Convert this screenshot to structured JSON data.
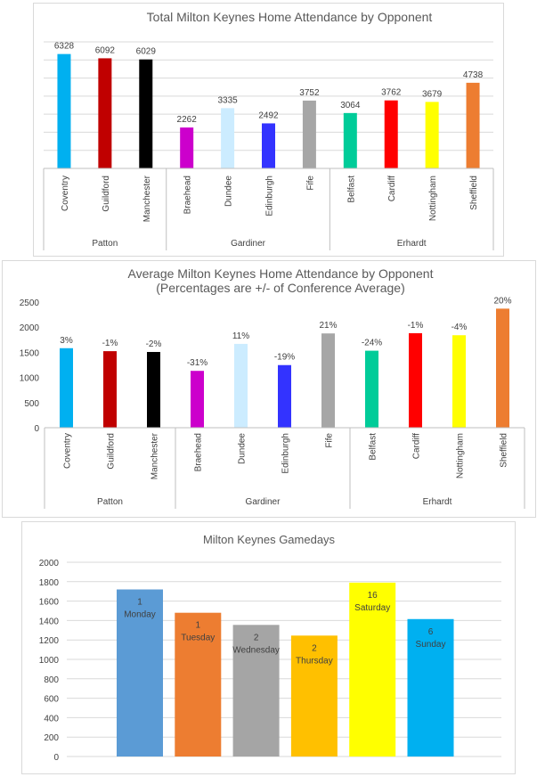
{
  "chart_data": [
    {
      "type": "bar",
      "title": "Total Milton Keynes Home Attendance by Opponent",
      "groups": [
        {
          "name": "Patton",
          "categories": [
            "Coventry",
            "Guildford",
            "Manchester"
          ]
        },
        {
          "name": "Gardiner",
          "categories": [
            "Braehead",
            "Dundee",
            "Edinburgh",
            "Fife"
          ]
        },
        {
          "name": "Erhardt",
          "categories": [
            "Belfast",
            "Cardiff",
            "Nottingham",
            "Sheffield"
          ]
        }
      ],
      "categories": [
        "Coventry",
        "Guildford",
        "Manchester",
        "Braehead",
        "Dundee",
        "Edinburgh",
        "Fife",
        "Belfast",
        "Cardiff",
        "Nottingham",
        "Sheffield"
      ],
      "values": [
        6328,
        6092,
        6029,
        2262,
        3335,
        2492,
        3752,
        3064,
        3762,
        3679,
        4738
      ],
      "data_labels": [
        "6328",
        "6092",
        "6029",
        "2262",
        "3335",
        "2492",
        "3752",
        "3064",
        "3762",
        "3679",
        "4738"
      ],
      "colors": [
        "#00B0F0",
        "#C00000",
        "#000000",
        "#CC00CC",
        "#CCECFF",
        "#3333FF",
        "#A6A6A6",
        "#00CC99",
        "#FF0000",
        "#FFFF00",
        "#ED7D31"
      ],
      "ylim": [
        0,
        7000
      ],
      "grid": true,
      "legend": "none"
    },
    {
      "type": "bar",
      "title": "Average Milton Keynes Home Attendance by Opponent",
      "subtitle": "(Percentages are +/- of Conference Average)",
      "groups": [
        {
          "name": "Patton",
          "categories": [
            "Coventry",
            "Guildford",
            "Manchester"
          ]
        },
        {
          "name": "Gardiner",
          "categories": [
            "Braehead",
            "Dundee",
            "Edinburgh",
            "Fife"
          ]
        },
        {
          "name": "Erhardt",
          "categories": [
            "Belfast",
            "Cardiff",
            "Nottingham",
            "Sheffield"
          ]
        }
      ],
      "categories": [
        "Coventry",
        "Guildford",
        "Manchester",
        "Braehead",
        "Dundee",
        "Edinburgh",
        "Fife",
        "Belfast",
        "Cardiff",
        "Nottingham",
        "Sheffield"
      ],
      "values": [
        1582,
        1523,
        1507,
        1131,
        1668,
        1246,
        1876,
        1532,
        1881,
        1840,
        2369
      ],
      "data_labels": [
        "3%",
        "-1%",
        "-2%",
        "-31%",
        "11%",
        "-19%",
        "21%",
        "-24%",
        "-1%",
        "-4%",
        "20%"
      ],
      "colors": [
        "#00B0F0",
        "#C00000",
        "#000000",
        "#CC00CC",
        "#CCECFF",
        "#3333FF",
        "#A6A6A6",
        "#00CC99",
        "#FF0000",
        "#FFFF00",
        "#ED7D31"
      ],
      "ylim": [
        0,
        2500
      ],
      "yticks": [
        "0",
        "500",
        "1000",
        "1500",
        "2000",
        "2500"
      ],
      "grid": false,
      "legend": "none"
    },
    {
      "type": "bar",
      "title": "Milton Keynes Gamedays",
      "categories": [
        "Monday",
        "Tuesday",
        "Wednesday",
        "Thursday",
        "Saturday",
        "Sunday"
      ],
      "values": [
        1720,
        1480,
        1355,
        1245,
        1790,
        1415
      ],
      "games": [
        "1",
        "1",
        "2",
        "2",
        "16",
        "6"
      ],
      "colors": [
        "#5B9BD5",
        "#ED7D31",
        "#A5A5A5",
        "#FFC000",
        "#FFFF00",
        "#00B0F0"
      ],
      "ylim": [
        0,
        2000
      ],
      "yticks": [
        "0",
        "200",
        "400",
        "600",
        "800",
        "1000",
        "1200",
        "1400",
        "1600",
        "1800",
        "2000"
      ],
      "grid": true,
      "legend": "none"
    }
  ]
}
